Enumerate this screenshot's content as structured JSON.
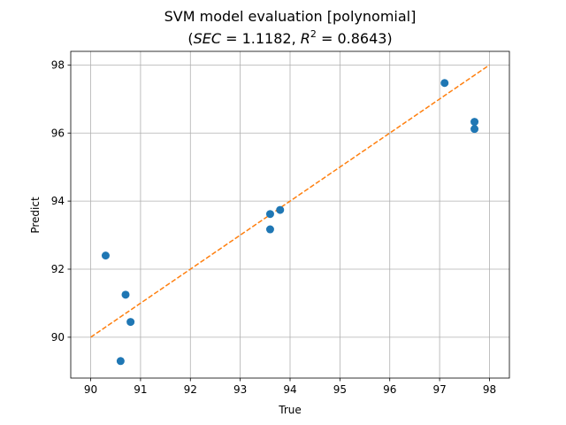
{
  "chart_data": {
    "type": "scatter",
    "title": "SVM model evaluation [polynomial]",
    "subtitle": "(SEC = 1.1182, R² = 0.8643)",
    "subtitle_parts": {
      "open": "(",
      "sec_symbol": "SEC",
      "sec_eq": " = 1.1182, ",
      "r_symbol": "R",
      "r_exp": "2",
      "r_eq": " = 0.8643)"
    },
    "xlabel": "True",
    "ylabel": "Predict",
    "xlim": [
      89.6,
      98.4
    ],
    "ylim": [
      88.8,
      98.4
    ],
    "xticks": [
      90,
      91,
      92,
      93,
      94,
      95,
      96,
      97,
      98
    ],
    "yticks": [
      90,
      92,
      94,
      96,
      98
    ],
    "grid": true,
    "series": [
      {
        "color": "#1f77b4",
        "points": [
          {
            "x": 90.3,
            "y": 92.4
          },
          {
            "x": 90.7,
            "y": 91.25
          },
          {
            "x": 90.8,
            "y": 90.45
          },
          {
            "x": 90.6,
            "y": 89.3
          },
          {
            "x": 93.6,
            "y": 93.62
          },
          {
            "x": 93.6,
            "y": 93.17
          },
          {
            "x": 93.8,
            "y": 93.74
          },
          {
            "x": 97.1,
            "y": 97.47
          },
          {
            "x": 97.7,
            "y": 96.33
          },
          {
            "x": 97.7,
            "y": 96.12
          }
        ]
      }
    ],
    "reference_line": {
      "style": "dashed",
      "color": "#ff7f0e",
      "points": [
        {
          "x": 90,
          "y": 90
        },
        {
          "x": 98,
          "y": 98
        }
      ]
    }
  }
}
